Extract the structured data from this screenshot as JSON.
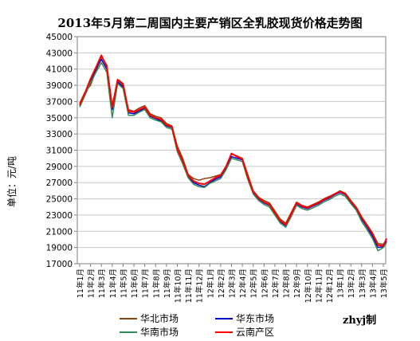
{
  "chart_data": {
    "type": "line",
    "title": "2013年5月第二周国内主要产销区全乳胶现货价格走势图",
    "ylabel": "单位：元/吨",
    "ylim": [
      17000,
      45000
    ],
    "yticks": [
      17000,
      19000,
      21000,
      23000,
      25000,
      27000,
      29000,
      31000,
      33000,
      35000,
      37000,
      39000,
      41000,
      43000,
      45000
    ],
    "categories": [
      "11年1月",
      "11年2月",
      "11年3月",
      "11年4月",
      "11年5月",
      "11年6月",
      "11年7月",
      "11年8月",
      "11年9月",
      "11年10月",
      "11年11月",
      "11年12月",
      "12年1月",
      "12年2月",
      "12年3月",
      "12年4月",
      "12年5月",
      "12年6月",
      "12年7月",
      "12年8月",
      "12年9月",
      "12年10月",
      "12年11月",
      "12年12月",
      "13年1月",
      "13年2月",
      "13年3月",
      "13年4月",
      "13年5月"
    ],
    "x": [
      0,
      0.5,
      1,
      1.5,
      2,
      2.5,
      3,
      3.5,
      4,
      4.5,
      5,
      5.5,
      6,
      6.5,
      7,
      7.5,
      8,
      8.5,
      9,
      9.5,
      10,
      10.5,
      11,
      11.5,
      12,
      12.5,
      13,
      13.5,
      14,
      14.5,
      15,
      15.5,
      16,
      16.5,
      17,
      17.5,
      18,
      18.5,
      19,
      19.5,
      20,
      20.5,
      21,
      21.5,
      22,
      22.5,
      23,
      23.5,
      24,
      24.5,
      25,
      25.5,
      26,
      26.5,
      27,
      27.5,
      28,
      28.3
    ],
    "series": [
      {
        "name": "华北市场",
        "color": "#8B4513",
        "values": [
          36800,
          38200,
          39000,
          40800,
          42500,
          41500,
          36500,
          39600,
          39000,
          36000,
          35800,
          36200,
          36500,
          35500,
          35200,
          35000,
          34300,
          34000,
          31500,
          30000,
          28000,
          27500,
          27300,
          27500,
          27600,
          27800,
          28000,
          29000,
          30500,
          30300,
          30000,
          28000,
          26000,
          25200,
          24800,
          24500,
          23500,
          22500,
          22000,
          23300,
          24600,
          24200,
          24000,
          24300,
          24600,
          25000,
          25300,
          25600,
          26000,
          25700,
          24800,
          24000,
          22800,
          21800,
          20800,
          19500,
          19400,
          20000
        ]
      },
      {
        "name": "华东市场",
        "color": "#0000CD",
        "values": [
          36500,
          38000,
          39500,
          41000,
          42200,
          41000,
          36000,
          39400,
          38800,
          35600,
          35500,
          35800,
          36200,
          35200,
          34900,
          34600,
          34000,
          33800,
          31000,
          29500,
          27800,
          27000,
          26700,
          26500,
          27000,
          27400,
          27700,
          28800,
          30200,
          30000,
          29800,
          27600,
          25800,
          25000,
          24500,
          24200,
          23200,
          22200,
          21700,
          23000,
          24400,
          24000,
          23800,
          24100,
          24400,
          24800,
          25100,
          25500,
          25800,
          25500,
          24600,
          23800,
          22500,
          21500,
          20400,
          19000,
          19100,
          19800
        ]
      },
      {
        "name": "华南市场",
        "color": "#2E8B57",
        "values": [
          36300,
          37800,
          39300,
          40600,
          41800,
          40600,
          35000,
          39200,
          38600,
          35300,
          35300,
          35700,
          36000,
          35000,
          34700,
          34500,
          33800,
          33600,
          30800,
          29300,
          27600,
          26800,
          26500,
          26400,
          26900,
          27200,
          27500,
          28600,
          30000,
          29800,
          29600,
          27400,
          25600,
          24800,
          24300,
          24000,
          23000,
          22000,
          21500,
          22800,
          24200,
          23800,
          23600,
          23900,
          24200,
          24600,
          24900,
          25300,
          25600,
          25300,
          24400,
          23600,
          22200,
          21200,
          20100,
          18600,
          19000,
          19600
        ]
      },
      {
        "name": "云南产区",
        "color": "#FF0000",
        "values": [
          36600,
          38100,
          39800,
          41200,
          42700,
          41300,
          36300,
          39700,
          39200,
          35800,
          35700,
          36000,
          36300,
          35300,
          35000,
          34800,
          34100,
          33900,
          31100,
          29700,
          27900,
          27200,
          26900,
          26800,
          27200,
          27600,
          27900,
          29000,
          30600,
          30200,
          29900,
          27700,
          25900,
          25100,
          24600,
          24300,
          23300,
          22300,
          21800,
          23100,
          24500,
          24100,
          23900,
          24200,
          24500,
          24900,
          25200,
          25600,
          25900,
          25600,
          24700,
          23900,
          22700,
          21700,
          20700,
          19300,
          19200,
          20100
        ]
      }
    ],
    "legend_position": "bottom",
    "grid": true
  },
  "footer": {
    "credit": "zhyj制"
  }
}
